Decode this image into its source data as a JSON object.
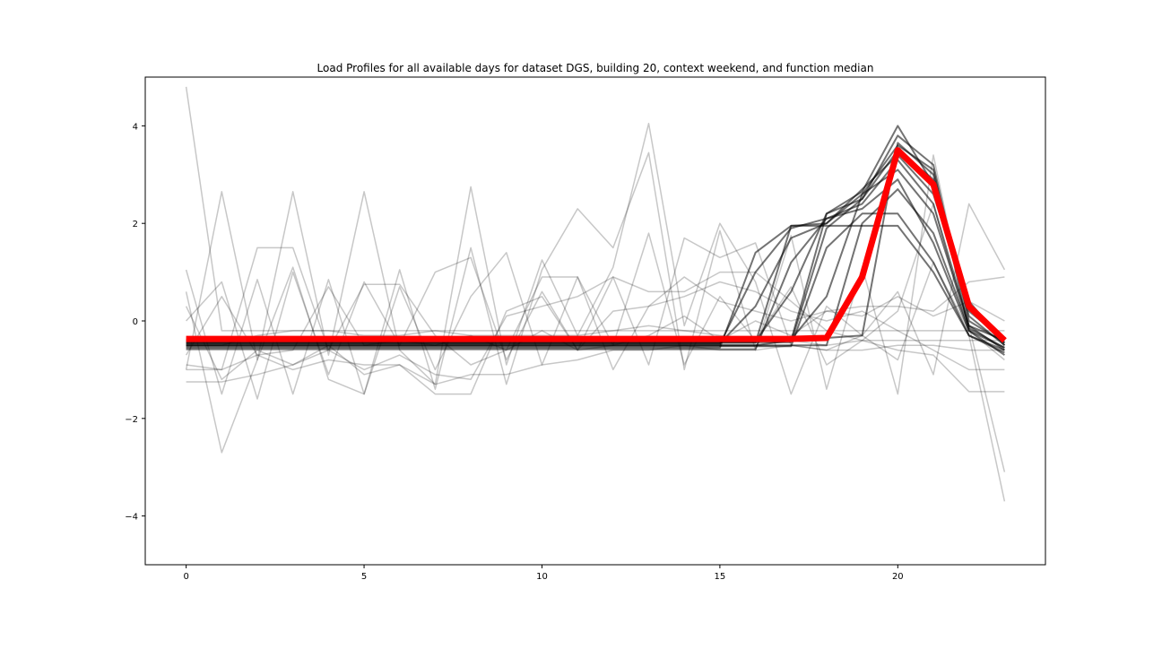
{
  "chart_data": {
    "type": "line",
    "title": "Load Profiles for all available days for dataset DGS, building 20, context weekend, and function median",
    "xlabel": "",
    "ylabel": "",
    "xlim": [
      -1.15,
      24.15
    ],
    "ylim": [
      -5.0,
      5.0
    ],
    "xticks": [
      0,
      5,
      10,
      15,
      20
    ],
    "xtick_labels": [
      "0",
      "5",
      "10",
      "15",
      "20"
    ],
    "yticks": [
      -4,
      -2,
      0,
      2,
      4
    ],
    "ytick_labels": [
      "−4",
      "−2",
      "0",
      "2",
      "4"
    ],
    "grid": false,
    "legend": "none",
    "colors": {
      "profile": "#000000",
      "median": "#ff0000",
      "axes": "#000000"
    },
    "x": [
      0,
      1,
      2,
      3,
      4,
      5,
      6,
      7,
      8,
      9,
      10,
      11,
      12,
      13,
      14,
      15,
      16,
      17,
      18,
      19,
      20,
      21,
      22,
      23
    ],
    "series": [
      {
        "style": "profile-dark",
        "values": [
          -0.55,
          -0.55,
          -0.55,
          -0.55,
          -0.55,
          -0.55,
          -0.55,
          -0.55,
          -0.55,
          -0.55,
          -0.55,
          -0.55,
          -0.55,
          -0.55,
          -0.55,
          -0.55,
          1.4,
          1.95,
          1.95,
          1.95,
          1.95,
          1.0,
          -0.3,
          -0.65
        ]
      },
      {
        "style": "profile-dark",
        "values": [
          -0.45,
          -0.45,
          -0.45,
          -0.45,
          -0.45,
          -0.45,
          -0.45,
          -0.45,
          -0.45,
          -0.45,
          -0.45,
          -0.45,
          -0.45,
          -0.45,
          -0.45,
          -0.45,
          -0.45,
          1.95,
          2.0,
          2.6,
          3.6,
          3.1,
          -0.2,
          -0.55
        ]
      },
      {
        "style": "profile-dark",
        "values": [
          -0.4,
          -0.4,
          -0.4,
          -0.4,
          -0.4,
          -0.4,
          -0.4,
          -0.4,
          -0.4,
          -0.4,
          -0.4,
          -0.4,
          -0.4,
          -0.4,
          -0.4,
          -0.4,
          -0.4,
          -0.4,
          -0.35,
          -0.3,
          3.65,
          3.0,
          0.2,
          -0.4
        ]
      },
      {
        "style": "profile-dark",
        "values": [
          -0.5,
          -0.5,
          -0.5,
          -0.5,
          -0.5,
          -0.5,
          -0.5,
          -0.5,
          -0.5,
          -0.5,
          -0.5,
          -0.5,
          -0.5,
          -0.5,
          -0.5,
          -0.5,
          -0.5,
          -0.4,
          2.2,
          2.65,
          4.0,
          2.8,
          0.1,
          -0.5
        ]
      },
      {
        "style": "profile-dark",
        "values": [
          -0.48,
          -0.48,
          -0.48,
          -0.48,
          -0.48,
          -0.48,
          -0.48,
          -0.48,
          -0.48,
          -0.48,
          -0.48,
          -0.48,
          -0.48,
          -0.48,
          -0.48,
          -0.48,
          1.0,
          1.9,
          2.1,
          2.4,
          3.3,
          2.4,
          -0.1,
          -0.6
        ]
      },
      {
        "style": "profile-dark",
        "values": [
          -0.42,
          -0.42,
          -0.42,
          -0.42,
          -0.42,
          -0.42,
          -0.42,
          -0.42,
          -0.42,
          -0.42,
          -0.42,
          -0.42,
          -0.42,
          -0.42,
          -0.42,
          -0.42,
          -0.42,
          0.6,
          2.2,
          2.5,
          3.8,
          3.2,
          0.0,
          -0.45
        ]
      },
      {
        "style": "profile-dark",
        "values": [
          -0.52,
          -0.52,
          -0.52,
          -0.52,
          -0.52,
          -0.52,
          -0.52,
          -0.52,
          -0.52,
          -0.52,
          -0.52,
          -0.52,
          -0.52,
          -0.52,
          -0.52,
          -0.52,
          -0.52,
          -0.52,
          1.5,
          2.2,
          2.2,
          1.2,
          -0.3,
          -0.6
        ]
      },
      {
        "style": "profile-dark",
        "values": [
          -0.46,
          -0.46,
          -0.46,
          -0.46,
          -0.46,
          -0.46,
          -0.46,
          -0.46,
          -0.46,
          -0.46,
          -0.46,
          -0.46,
          -0.46,
          -0.46,
          -0.46,
          -0.46,
          0.3,
          1.7,
          2.0,
          2.7,
          3.4,
          2.6,
          0.3,
          -0.5
        ]
      },
      {
        "style": "profile-dark",
        "values": [
          -0.38,
          -0.38,
          -0.38,
          -0.38,
          -0.38,
          -0.38,
          -0.38,
          -0.38,
          -0.38,
          -0.38,
          -0.38,
          -0.38,
          -0.38,
          -0.38,
          -0.38,
          -0.38,
          -0.38,
          -0.38,
          0.5,
          2.6,
          3.1,
          2.2,
          -0.1,
          -0.4
        ]
      },
      {
        "style": "profile-dark",
        "values": [
          -0.58,
          -0.58,
          -0.58,
          -0.58,
          -0.58,
          -0.58,
          -0.58,
          -0.58,
          -0.58,
          -0.58,
          -0.58,
          -0.58,
          -0.58,
          -0.58,
          -0.58,
          -0.58,
          -0.58,
          1.2,
          2.1,
          2.3,
          2.9,
          1.6,
          -0.2,
          -0.7
        ]
      },
      {
        "style": "profile-dark",
        "values": [
          -0.44,
          -0.44,
          -0.44,
          -0.44,
          -0.44,
          -0.44,
          -0.44,
          -0.44,
          -0.44,
          -0.44,
          -0.44,
          -0.44,
          -0.44,
          -0.44,
          -0.44,
          -0.44,
          -0.44,
          -0.44,
          1.9,
          2.5,
          3.5,
          2.9,
          0.4,
          -0.45
        ]
      },
      {
        "style": "profile-dark",
        "values": [
          -0.5,
          -0.5,
          -0.5,
          -0.5,
          -0.5,
          -0.5,
          -0.5,
          -0.5,
          -0.5,
          -0.5,
          -0.5,
          -0.5,
          -0.5,
          -0.5,
          -0.5,
          -0.5,
          -0.5,
          -0.5,
          -0.5,
          2.0,
          2.7,
          1.8,
          -0.15,
          -0.55
        ]
      },
      {
        "style": "profile-light",
        "values": [
          4.8,
          -0.2,
          -0.2,
          -0.2,
          -0.2,
          -0.2,
          -0.2,
          -0.2,
          -0.2,
          -0.2,
          -0.2,
          -0.2,
          -0.2,
          -0.2,
          -0.2,
          -0.2,
          -0.2,
          -0.2,
          -0.2,
          -0.2,
          -0.2,
          -0.2,
          -0.2,
          -0.2
        ]
      },
      {
        "style": "profile-light",
        "values": [
          -1.0,
          2.65,
          -0.8,
          2.65,
          -0.7,
          2.65,
          -0.6,
          -1.3,
          2.75,
          -0.9,
          1.25,
          -0.3,
          1.1,
          4.05,
          -0.1,
          2.0,
          0.8,
          -1.5,
          0.3,
          -0.3,
          0.6,
          -1.1,
          2.4,
          1.05
        ]
      },
      {
        "style": "profile-light",
        "values": [
          1.05,
          -1.5,
          0.85,
          -1.5,
          0.85,
          -1.5,
          1.05,
          -1.4,
          1.5,
          -1.3,
          1.05,
          2.3,
          1.5,
          3.45,
          -1.0,
          1.85,
          -0.6,
          1.75,
          -1.4,
          1.1,
          -1.5,
          3.4,
          -0.1,
          -3.1
        ]
      },
      {
        "style": "profile-light",
        "values": [
          0.6,
          -2.7,
          -0.8,
          1.1,
          -1.2,
          -1.5,
          0.7,
          -1.0,
          0.5,
          1.4,
          -0.9,
          0.9,
          -0.5,
          1.8,
          -0.9,
          0.5,
          -0.4,
          0.7,
          -0.9,
          -0.4,
          0.2,
          2.4,
          -0.3,
          -3.7
        ]
      },
      {
        "style": "profile-light",
        "values": [
          0.0,
          0.8,
          -1.6,
          1.0,
          -1.1,
          0.8,
          -0.5,
          1.0,
          1.3,
          -0.8,
          0.6,
          -0.6,
          0.9,
          -0.9,
          1.7,
          1.3,
          1.6,
          -0.5,
          -0.6,
          -0.3,
          -0.8,
          1.2,
          -0.2,
          -0.8
        ]
      },
      {
        "style": "profile-light",
        "values": [
          -0.9,
          -1.0,
          1.5,
          1.5,
          -0.6,
          -1.0,
          -0.7,
          -1.1,
          -1.2,
          0.1,
          0.3,
          0.5,
          0.9,
          0.6,
          0.6,
          1.0,
          1.0,
          0.4,
          -0.2,
          -0.4,
          -0.6,
          -0.7,
          -1.45,
          -1.45
        ]
      },
      {
        "style": "profile-light",
        "values": [
          -1.25,
          -1.25,
          -1.1,
          -0.9,
          -0.6,
          0.75,
          0.75,
          -0.3,
          -0.9,
          -0.6,
          0.9,
          0.9,
          -1.0,
          0.3,
          0.5,
          0.8,
          0.6,
          0.2,
          0.0,
          0.2,
          -0.2,
          -0.6,
          -1.0,
          -1.0
        ]
      },
      {
        "style": "profile-light",
        "values": [
          0.3,
          -1.2,
          -0.6,
          -0.9,
          -0.5,
          -1.1,
          -0.9,
          -1.5,
          -1.5,
          0.2,
          0.5,
          -0.6,
          0.2,
          0.3,
          0.9,
          0.4,
          0.2,
          0.0,
          0.2,
          0.3,
          0.3,
          0.2,
          0.8,
          0.9
        ]
      },
      {
        "style": "profile-light",
        "values": [
          -0.7,
          0.5,
          -0.7,
          -0.6,
          0.7,
          -0.5,
          -0.4,
          -0.5,
          -0.3,
          -0.6,
          -0.2,
          -0.6,
          -0.5,
          -0.3,
          0.1,
          -0.4,
          0.0,
          -0.3,
          0.2,
          0.1,
          0.5,
          0.1,
          0.4,
          0.0
        ]
      },
      {
        "style": "profile-light",
        "values": [
          -1.0,
          -1.0,
          -0.7,
          -1.0,
          -0.8,
          -0.9,
          -0.9,
          -1.3,
          -1.1,
          -1.1,
          -0.9,
          -0.8,
          -0.6,
          -0.6,
          -0.5,
          -0.6,
          -0.6,
          -0.5,
          -0.6,
          -0.6,
          -0.5,
          -0.5,
          -0.6,
          -0.6
        ]
      },
      {
        "style": "profile-light",
        "values": [
          -0.5,
          -0.5,
          -0.3,
          -0.2,
          -0.2,
          -0.3,
          -0.3,
          -0.2,
          -0.3,
          -0.3,
          -0.3,
          -0.3,
          -0.2,
          -0.1,
          -0.2,
          -0.3,
          -0.4,
          -0.4,
          -0.5,
          -0.4,
          -0.4,
          -0.4,
          -0.4,
          -0.4
        ]
      },
      {
        "style": "median",
        "name": "median",
        "values": [
          -0.37,
          -0.37,
          -0.37,
          -0.37,
          -0.37,
          -0.37,
          -0.37,
          -0.37,
          -0.37,
          -0.37,
          -0.37,
          -0.37,
          -0.37,
          -0.37,
          -0.37,
          -0.37,
          -0.37,
          -0.37,
          -0.35,
          0.9,
          3.5,
          2.8,
          0.3,
          -0.4
        ]
      }
    ]
  }
}
